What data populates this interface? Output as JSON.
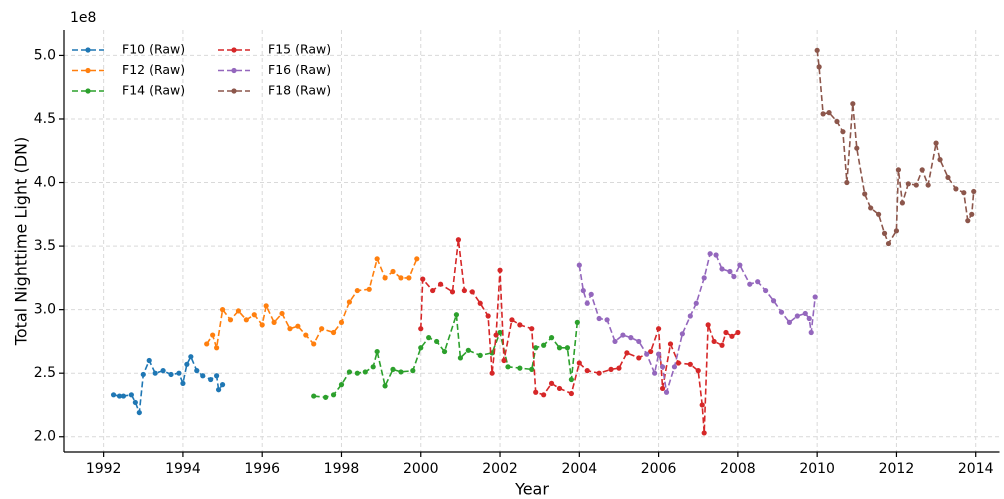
{
  "chart_data": {
    "type": "line",
    "x_label": "Year",
    "y_label": "Total Nighttime Light (DN)",
    "offset_label": "1e8",
    "xlim": [
      1991,
      2014.6
    ],
    "ylim": [
      1.88,
      5.2
    ],
    "xticks": [
      1992,
      1994,
      1996,
      1998,
      2000,
      2002,
      2004,
      2006,
      2008,
      2010,
      2012,
      2014
    ],
    "yticks": [
      {
        "value": 2,
        "label": "2.0"
      },
      2.5,
      {
        "value": 3,
        "label": "3.0"
      },
      3.5,
      {
        "value": 4,
        "label": "4.0"
      },
      4.5,
      {
        "value": 5,
        "label": "5.0"
      }
    ],
    "grid": true,
    "legend": "upper left",
    "series": [
      {
        "name": "F10 (Raw)",
        "color": "#1f77b4",
        "x": [
          1992.25,
          1992.4,
          1992.5,
          1992.7,
          1992.8,
          1992.9,
          1993.0,
          1993.15,
          1993.3,
          1993.5,
          1993.7,
          1993.9,
          1994.0,
          1994.1,
          1994.2,
          1994.35,
          1994.5,
          1994.7,
          1994.85,
          1994.9,
          1995.0
        ],
        "values": [
          2.33,
          2.32,
          2.32,
          2.33,
          2.27,
          2.19,
          2.49,
          2.6,
          2.5,
          2.52,
          2.49,
          2.5,
          2.42,
          2.57,
          2.63,
          2.52,
          2.48,
          2.45,
          2.48,
          2.37,
          2.41
        ]
      },
      {
        "name": "F12 (Raw)",
        "color": "#ff7f0e",
        "x": [
          1994.6,
          1994.75,
          1994.85,
          1995.0,
          1995.2,
          1995.4,
          1995.6,
          1995.8,
          1996.0,
          1996.1,
          1996.3,
          1996.5,
          1996.7,
          1996.9,
          1997.1,
          1997.3,
          1997.5,
          1997.8,
          1998.0,
          1998.2,
          1998.4,
          1998.7,
          1998.9,
          1999.1,
          1999.3,
          1999.5,
          1999.7,
          1999.9
        ],
        "values": [
          2.73,
          2.8,
          2.7,
          3.0,
          2.92,
          2.99,
          2.92,
          2.96,
          2.88,
          3.03,
          2.9,
          2.97,
          2.85,
          2.87,
          2.8,
          2.73,
          2.85,
          2.82,
          2.9,
          3.06,
          3.15,
          3.16,
          3.4,
          3.25,
          3.3,
          3.25,
          3.25,
          3.4
        ]
      },
      {
        "name": "F14 (Raw)",
        "color": "#2ca02c",
        "x": [
          1997.3,
          1997.6,
          1997.8,
          1998.0,
          1998.2,
          1998.4,
          1998.6,
          1998.8,
          1998.9,
          1999.1,
          1999.3,
          1999.5,
          1999.8,
          2000.0,
          2000.2,
          2000.4,
          2000.6,
          2000.9,
          2001.0,
          2001.2,
          2001.5,
          2001.8,
          2002.0,
          2002.2,
          2002.5,
          2002.8,
          2002.9,
          2003.1,
          2003.3,
          2003.5,
          2003.7,
          2003.8,
          2003.95
        ],
        "values": [
          2.32,
          2.31,
          2.33,
          2.41,
          2.51,
          2.5,
          2.51,
          2.55,
          2.67,
          2.4,
          2.53,
          2.51,
          2.52,
          2.7,
          2.78,
          2.75,
          2.67,
          2.96,
          2.62,
          2.68,
          2.64,
          2.66,
          2.82,
          2.55,
          2.54,
          2.53,
          2.7,
          2.72,
          2.78,
          2.7,
          2.7,
          2.45,
          2.9
        ]
      },
      {
        "name": "F15 (Raw)",
        "color": "#d62728",
        "x": [
          2000.0,
          2000.05,
          2000.3,
          2000.5,
          2000.8,
          2000.95,
          2001.1,
          2001.3,
          2001.5,
          2001.7,
          2001.8,
          2001.9,
          2002.0,
          2002.1,
          2002.3,
          2002.5,
          2002.8,
          2002.9,
          2003.1,
          2003.3,
          2003.5,
          2003.8,
          2004.0,
          2004.2,
          2004.5,
          2004.8,
          2005.0,
          2005.2,
          2005.5,
          2005.8,
          2006.0,
          2006.1,
          2006.3,
          2006.5,
          2006.8,
          2007.0,
          2007.1,
          2007.15,
          2007.25,
          2007.4,
          2007.6,
          2007.7,
          2007.85,
          2008.0
        ],
        "values": [
          2.85,
          3.24,
          3.15,
          3.2,
          3.14,
          3.55,
          3.15,
          3.14,
          3.05,
          2.95,
          2.5,
          2.8,
          3.31,
          2.6,
          2.92,
          2.88,
          2.85,
          2.35,
          2.33,
          2.42,
          2.38,
          2.34,
          2.58,
          2.52,
          2.5,
          2.53,
          2.54,
          2.66,
          2.62,
          2.67,
          2.85,
          2.38,
          2.73,
          2.58,
          2.57,
          2.52,
          2.25,
          2.03,
          2.88,
          2.75,
          2.72,
          2.82,
          2.79,
          2.82
        ]
      },
      {
        "name": "F16 (Raw)",
        "color": "#9467bd",
        "x": [
          2004.0,
          2004.1,
          2004.2,
          2004.3,
          2004.5,
          2004.7,
          2004.9,
          2005.1,
          2005.3,
          2005.5,
          2005.7,
          2005.9,
          2006.0,
          2006.1,
          2006.2,
          2006.4,
          2006.6,
          2006.8,
          2006.95,
          2007.15,
          2007.3,
          2007.45,
          2007.6,
          2007.8,
          2007.9,
          2008.05,
          2008.3,
          2008.5,
          2008.7,
          2008.9,
          2009.1,
          2009.3,
          2009.5,
          2009.7,
          2009.8,
          2009.85,
          2009.95
        ],
        "values": [
          3.35,
          3.15,
          3.05,
          3.12,
          2.93,
          2.92,
          2.75,
          2.8,
          2.78,
          2.75,
          2.65,
          2.5,
          2.65,
          2.55,
          2.35,
          2.55,
          2.81,
          2.95,
          3.05,
          3.25,
          3.44,
          3.43,
          3.32,
          3.3,
          3.26,
          3.35,
          3.2,
          3.22,
          3.15,
          3.07,
          2.98,
          2.9,
          2.95,
          2.97,
          2.93,
          2.82,
          3.1
        ]
      },
      {
        "name": "F18 (Raw)",
        "color": "#8c564b",
        "x": [
          2010.0,
          2010.05,
          2010.15,
          2010.3,
          2010.5,
          2010.65,
          2010.75,
          2010.9,
          2011.0,
          2011.2,
          2011.35,
          2011.55,
          2011.7,
          2011.8,
          2012.0,
          2012.05,
          2012.15,
          2012.3,
          2012.5,
          2012.65,
          2012.8,
          2013.0,
          2013.1,
          2013.3,
          2013.5,
          2013.7,
          2013.8,
          2013.9,
          2013.95
        ],
        "values": [
          5.04,
          4.91,
          4.54,
          4.55,
          4.48,
          4.4,
          4.0,
          4.62,
          4.27,
          3.91,
          3.8,
          3.75,
          3.6,
          3.52,
          3.62,
          4.1,
          3.84,
          3.99,
          3.98,
          4.1,
          3.98,
          4.31,
          4.18,
          4.04,
          3.95,
          3.92,
          3.7,
          3.75,
          3.93
        ]
      }
    ]
  }
}
